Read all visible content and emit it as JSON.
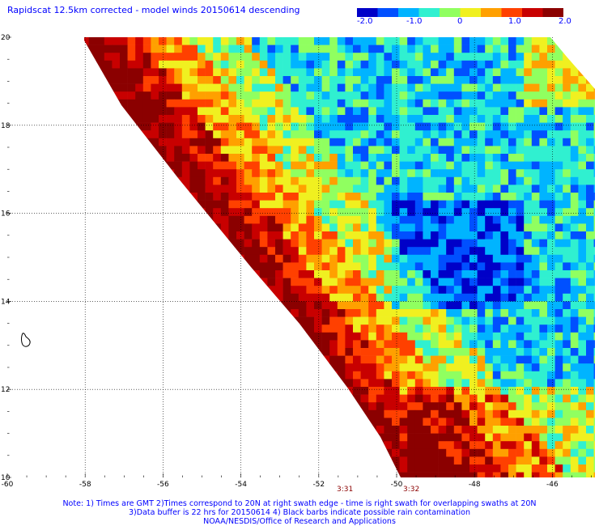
{
  "title": "Rapidscat 12.5km corrected - model winds 20150614 descending",
  "colorbar": {
    "ticks": [
      "-2.0",
      "-1.0",
      "0",
      "1.0",
      "2.0"
    ],
    "colors": [
      "#0000c8",
      "#0050ff",
      "#00b4ff",
      "#30f0d0",
      "#90ff60",
      "#f0f020",
      "#ffa000",
      "#ff4000",
      "#c80000",
      "#8b0000"
    ]
  },
  "axes": {
    "lon_labels": [
      "-60",
      "-58",
      "-56",
      "-54",
      "-52",
      "-50",
      "-48",
      "-46"
    ],
    "lat_labels": [
      "20",
      "18",
      "16",
      "14",
      "12",
      "10"
    ]
  },
  "times": [
    "3:31",
    "3:32"
  ],
  "notes": [
    "Note: 1) Times are GMT 2)Times correspond to 20N at right swath edge - time is right swath for overlapping swaths at 20N",
    "3)Data buffer is 22 hrs for 20150614 4) Black barbs indicate possible rain contamination",
    "NOAA/NESDIS/Office of Research and Applications"
  ],
  "icons": {
    "land": "island-outline-icon"
  }
}
